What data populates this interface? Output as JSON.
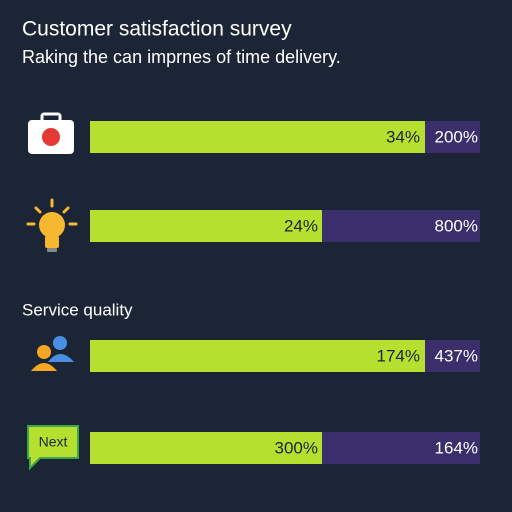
{
  "header": {
    "title": "Customer satisfaction survey",
    "subtitle": "Raking the can imprnes of time delivery."
  },
  "rows": [
    {
      "left": "34%",
      "right": "200%"
    },
    {
      "left": "24%",
      "right": "800%"
    },
    {
      "left": "174%",
      "right": "437%"
    },
    {
      "left": "300%",
      "right": "164%"
    }
  ],
  "section_label": "Service quality",
  "next_button": "Next"
}
